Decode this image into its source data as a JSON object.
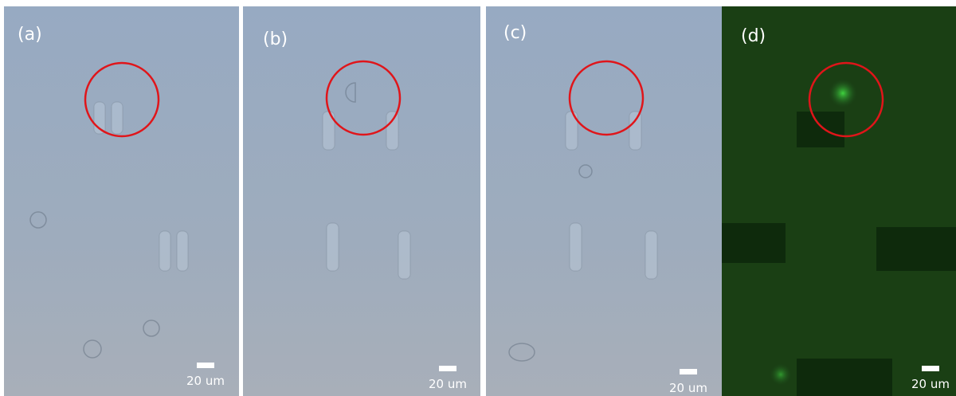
{
  "panels": [
    {
      "label": "(a)",
      "scale_bar": "20 um"
    },
    {
      "label": "(b)",
      "scale_bar": "20 um"
    },
    {
      "label": "(c)",
      "scale_bar": "20 um"
    },
    {
      "label": "(d)",
      "scale_bar": "20 um"
    }
  ]
}
